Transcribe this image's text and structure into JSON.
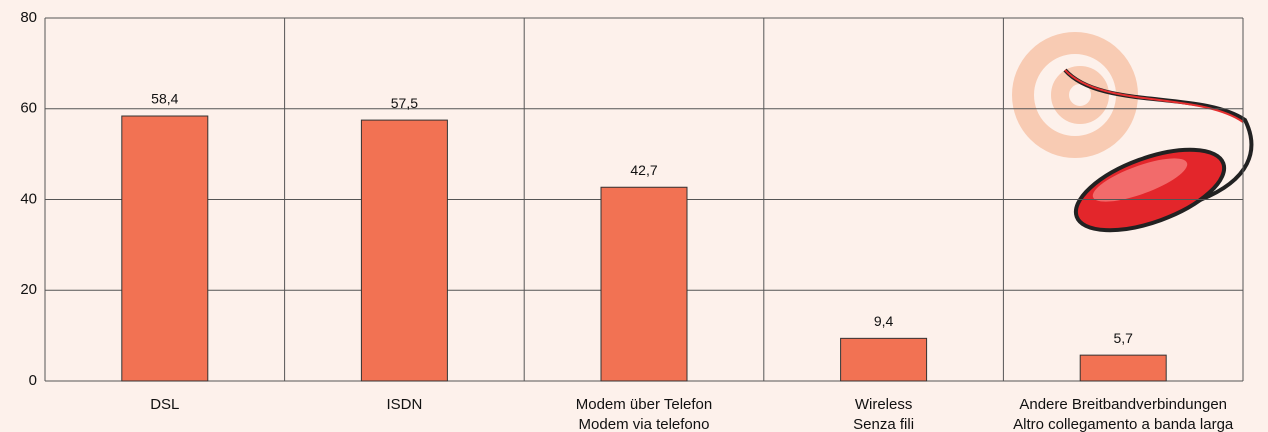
{
  "chart_data": {
    "type": "bar",
    "categories": [
      "DSL",
      "ISDN",
      "Modem über Telefon\nModem via telefono",
      "Wireless\nSenza fili",
      "Andere Breitbandverbindungen\nAltro collegamento a banda larga"
    ],
    "values": [
      58.4,
      57.5,
      42.7,
      9.4,
      5.7
    ],
    "value_labels": [
      "58,4",
      "57,5",
      "42,7",
      "9,4",
      "5,7"
    ],
    "color": "#f27253",
    "ylim": [
      0,
      80
    ],
    "yticks": [
      0,
      20,
      40,
      60,
      80
    ],
    "grid": true
  }
}
